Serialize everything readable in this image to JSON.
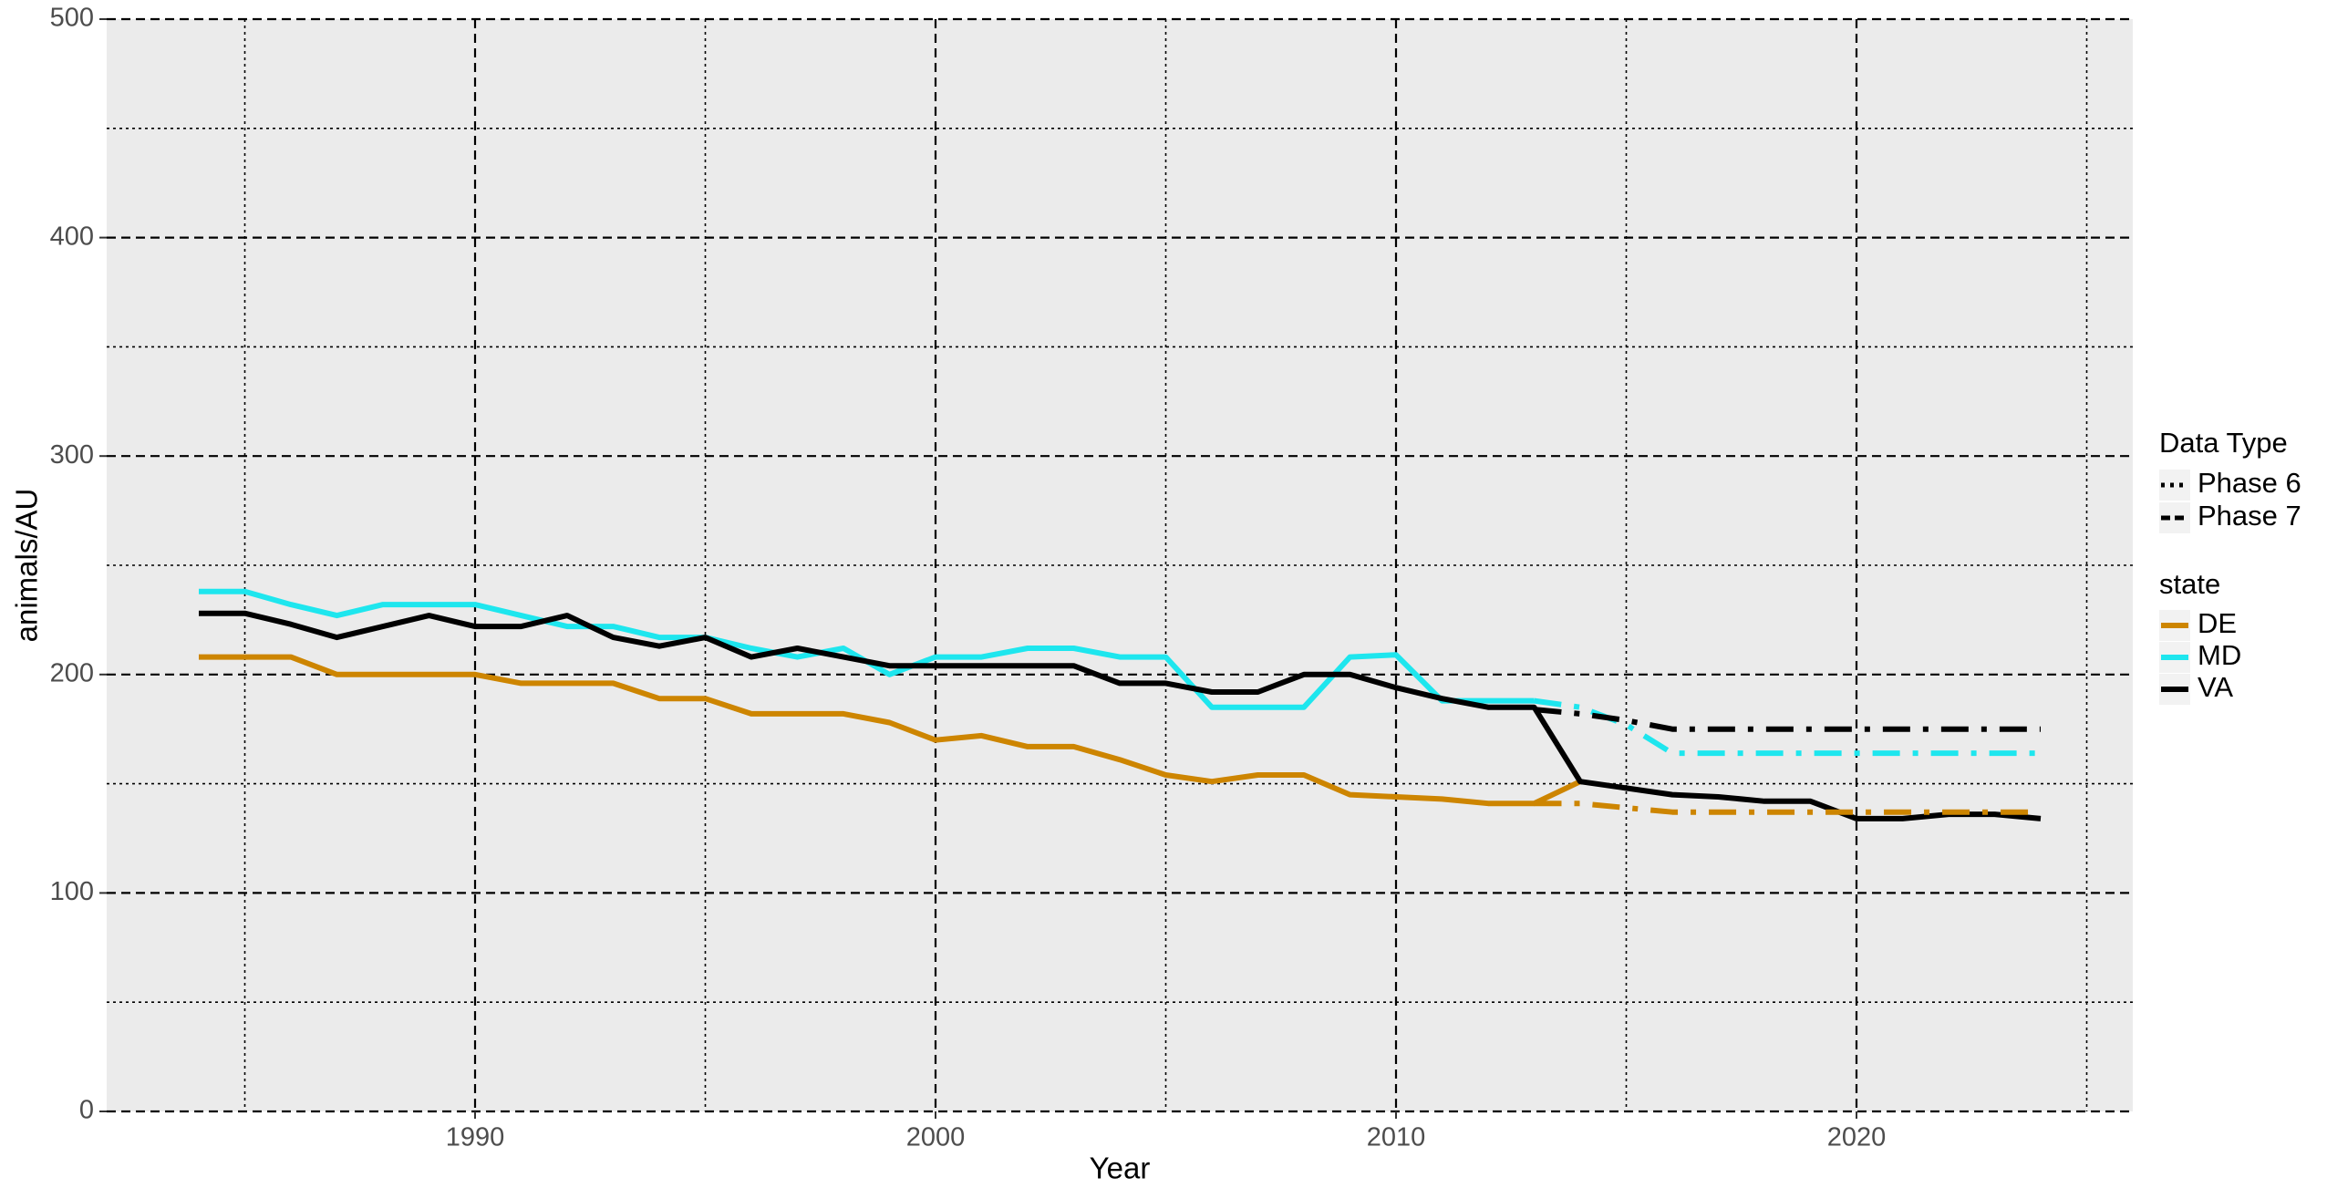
{
  "chart_data": {
    "type": "line",
    "xlabel": "Year",
    "ylabel": "animals/AU",
    "x": [
      1984,
      1985,
      1986,
      1987,
      1988,
      1989,
      1990,
      1991,
      1992,
      1993,
      1994,
      1995,
      1996,
      1997,
      1998,
      1999,
      2000,
      2001,
      2002,
      2003,
      2004,
      2005,
      2006,
      2007,
      2008,
      2009,
      2010,
      2011,
      2012,
      2013,
      2014,
      2015,
      2016,
      2017,
      2018,
      2019,
      2020,
      2021,
      2022,
      2023,
      2024
    ],
    "xlim": [
      1982,
      2026
    ],
    "xticks": [
      1990,
      2000,
      2010,
      2020
    ],
    "xminor": [
      1985,
      1995,
      2005,
      2015,
      2025
    ],
    "ylim": [
      0,
      500
    ],
    "yticks": [
      0,
      100,
      200,
      300,
      400,
      500
    ],
    "yminor": [
      50,
      150,
      250,
      350,
      450
    ],
    "grid": true,
    "legend_position": "right",
    "data_type_legend": {
      "title": "Data Type",
      "entries": [
        {
          "label": "Phase 6",
          "dash": "dash-dot"
        },
        {
          "label": "Phase 7",
          "dash": "solid"
        }
      ]
    },
    "state_legend": {
      "title": "state",
      "entries": [
        {
          "label": "DE",
          "color": "#cd8500"
        },
        {
          "label": "MD",
          "color": "#1ee6ee"
        },
        {
          "label": "VA",
          "color": "#000000"
        }
      ]
    },
    "series": [
      {
        "state": 0,
        "data_type": 1,
        "values": [
          208,
          208,
          208,
          200,
          200,
          200,
          200,
          196,
          196,
          196,
          189,
          189,
          182,
          182,
          182,
          178,
          170,
          172,
          167,
          167,
          161,
          154,
          151,
          154,
          154,
          145,
          144,
          143,
          141,
          141,
          151,
          null,
          null,
          null,
          null,
          null,
          null,
          null,
          null,
          null,
          null
        ]
      },
      {
        "state": 1,
        "data_type": 1,
        "values": [
          238,
          238,
          232,
          227,
          232,
          232,
          232,
          227,
          222,
          222,
          217,
          217,
          212,
          208,
          212,
          200,
          208,
          208,
          212,
          212,
          208,
          208,
          185,
          185,
          185,
          208,
          209,
          188,
          188,
          188,
          null,
          null,
          null,
          null,
          null,
          null,
          null,
          null,
          null,
          null,
          null
        ]
      },
      {
        "state": 2,
        "data_type": 1,
        "values": [
          228,
          228,
          223,
          217,
          222,
          227,
          222,
          222,
          227,
          217,
          213,
          217,
          208,
          212,
          208,
          204,
          204,
          204,
          204,
          204,
          196,
          196,
          192,
          192,
          200,
          200,
          194,
          189,
          185,
          185,
          151,
          148,
          145,
          144,
          142,
          142,
          134,
          134,
          136,
          136,
          134
        ]
      },
      {
        "state": 0,
        "data_type": 0,
        "values": [
          null,
          null,
          null,
          null,
          null,
          null,
          null,
          null,
          null,
          null,
          null,
          null,
          null,
          null,
          null,
          null,
          null,
          null,
          null,
          null,
          null,
          null,
          null,
          null,
          null,
          null,
          null,
          null,
          null,
          141,
          141,
          139,
          137,
          137,
          137,
          137,
          137,
          137,
          137,
          137,
          137
        ]
      },
      {
        "state": 1,
        "data_type": 0,
        "values": [
          null,
          null,
          null,
          null,
          null,
          null,
          null,
          null,
          null,
          null,
          null,
          null,
          null,
          null,
          null,
          null,
          null,
          null,
          null,
          null,
          null,
          null,
          null,
          null,
          null,
          null,
          null,
          null,
          null,
          188,
          185,
          177,
          164,
          164,
          164,
          164,
          164,
          164,
          164,
          164,
          164
        ]
      },
      {
        "state": 2,
        "data_type": 0,
        "values": [
          null,
          null,
          null,
          null,
          null,
          null,
          null,
          null,
          null,
          null,
          null,
          null,
          null,
          null,
          null,
          null,
          null,
          null,
          null,
          null,
          null,
          null,
          null,
          null,
          null,
          null,
          null,
          null,
          null,
          184,
          182,
          179,
          175,
          175,
          175,
          175,
          175,
          175,
          175,
          175,
          175
        ]
      }
    ]
  }
}
